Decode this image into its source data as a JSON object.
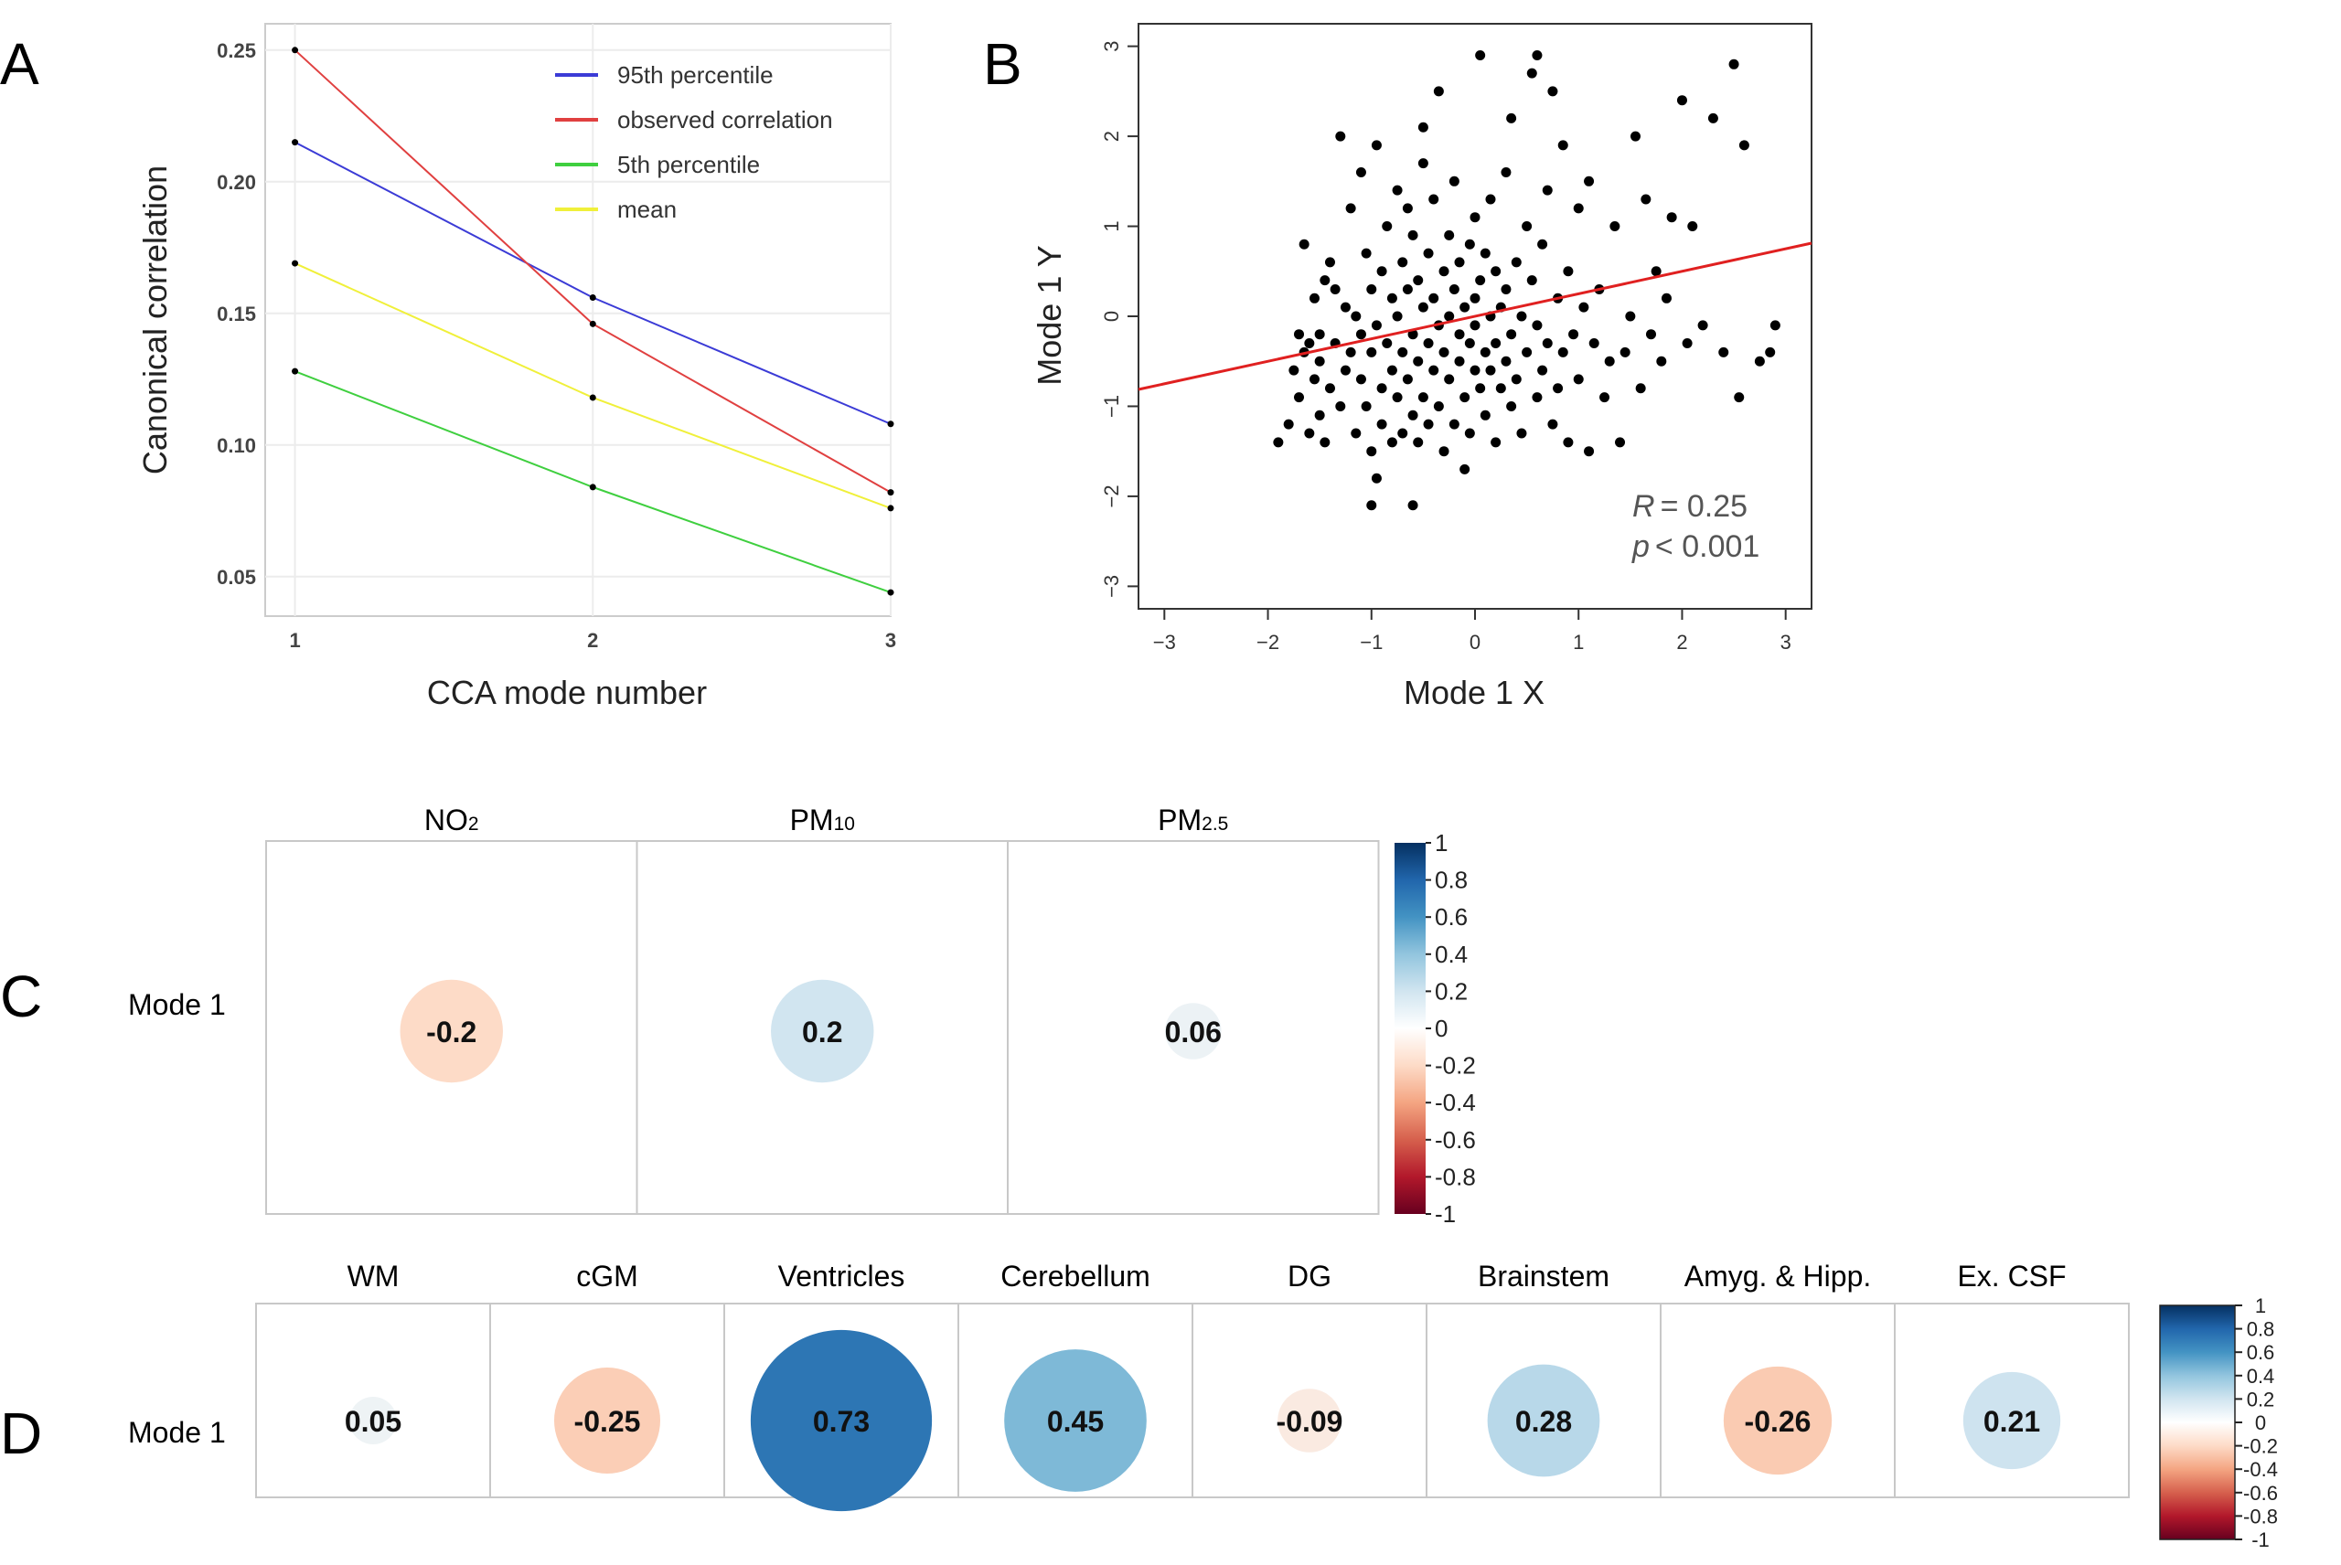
{
  "panels": {
    "a": {
      "letter": "A",
      "chart_data": {
        "type": "line",
        "title": "",
        "xlabel": "CCA mode number",
        "ylabel": "Canonical correlation",
        "x": [
          1,
          2,
          3
        ],
        "xticks": [
          "1",
          "2",
          "3"
        ],
        "xlim": [
          0.9,
          3.0
        ],
        "ylim": [
          0.035,
          0.26
        ],
        "yticks": [
          0.05,
          0.1,
          0.15,
          0.2,
          0.25
        ],
        "ytick_labels": [
          "0.05",
          "0.10",
          "0.15",
          "0.20",
          "0.25"
        ],
        "grid": true,
        "legend_position": "top-right",
        "series": [
          {
            "name": "95th percentile",
            "color": "#3b3bd6",
            "values": [
              0.215,
              0.156,
              0.108
            ]
          },
          {
            "name": "observed correlation",
            "color": "#e04040",
            "values": [
              0.25,
              0.146,
              0.082
            ]
          },
          {
            "name": "5th percentile",
            "color": "#3fcf3f",
            "values": [
              0.128,
              0.084,
              0.044
            ]
          },
          {
            "name": "mean",
            "color": "#f0f03a",
            "values": [
              0.169,
              0.118,
              0.076
            ]
          }
        ]
      }
    },
    "b": {
      "letter": "B",
      "chart_data": {
        "type": "scatter",
        "xlabel": "Mode 1 X",
        "ylabel": "Mode 1 Y",
        "xlim": [
          -3.25,
          3.25
        ],
        "ylim": [
          -3.25,
          3.25
        ],
        "xticks": [
          -3,
          -2,
          -1,
          0,
          1,
          2,
          3
        ],
        "xtick_labels": [
          "−3",
          "−2",
          "−1",
          "0",
          "1",
          "2",
          "3"
        ],
        "yticks": [
          -3,
          -2,
          -1,
          0,
          1,
          2,
          3
        ],
        "ytick_labels": [
          "−3",
          "−2",
          "−1",
          "0",
          "1",
          "2",
          "3"
        ],
        "fit_line": {
          "slope": 0.25,
          "intercept": 0.0,
          "color": "#e02020"
        },
        "annotation": {
          "r_label": "R",
          "r_value": "= 0.25",
          "p_label": "p",
          "p_value": "< 0.001"
        },
        "points": [
          [
            -1.9,
            -1.4
          ],
          [
            -1.8,
            -1.2
          ],
          [
            -1.75,
            -0.6
          ],
          [
            -1.7,
            -0.9
          ],
          [
            -1.7,
            -0.2
          ],
          [
            -1.65,
            -0.4
          ],
          [
            -1.65,
            0.8
          ],
          [
            -1.6,
            -1.3
          ],
          [
            -1.6,
            -0.3
          ],
          [
            -1.55,
            -0.7
          ],
          [
            -1.55,
            0.2
          ],
          [
            -1.5,
            -1.1
          ],
          [
            -1.5,
            -0.5
          ],
          [
            -1.5,
            -0.2
          ],
          [
            -1.45,
            0.4
          ],
          [
            -1.45,
            -1.4
          ],
          [
            -1.4,
            -0.8
          ],
          [
            -1.4,
            0.6
          ],
          [
            -1.35,
            -0.3
          ],
          [
            -1.35,
            0.3
          ],
          [
            -1.3,
            -1.0
          ],
          [
            -1.3,
            2.0
          ],
          [
            -1.25,
            -0.6
          ],
          [
            -1.25,
            0.1
          ],
          [
            -1.2,
            -0.4
          ],
          [
            -1.2,
            1.2
          ],
          [
            -1.15,
            -1.3
          ],
          [
            -1.15,
            0.0
          ],
          [
            -1.1,
            -0.7
          ],
          [
            -1.1,
            1.6
          ],
          [
            -1.1,
            -0.2
          ],
          [
            -1.05,
            0.7
          ],
          [
            -1.05,
            -1.0
          ],
          [
            -1.0,
            -1.5
          ],
          [
            -1.0,
            -0.4
          ],
          [
            -1.0,
            0.3
          ],
          [
            -1.0,
            -2.1
          ],
          [
            -0.95,
            -1.8
          ],
          [
            -0.95,
            -0.1
          ],
          [
            -0.95,
            1.9
          ],
          [
            -0.9,
            -0.8
          ],
          [
            -0.9,
            0.5
          ],
          [
            -0.9,
            -1.2
          ],
          [
            -0.85,
            -0.3
          ],
          [
            -0.85,
            1.0
          ],
          [
            -0.8,
            -0.6
          ],
          [
            -0.8,
            0.2
          ],
          [
            -0.8,
            -1.4
          ],
          [
            -0.75,
            1.4
          ],
          [
            -0.75,
            -0.9
          ],
          [
            -0.75,
            0.0
          ],
          [
            -0.7,
            -0.4
          ],
          [
            -0.7,
            0.6
          ],
          [
            -0.7,
            -1.3
          ],
          [
            -0.65,
            1.2
          ],
          [
            -0.65,
            -0.7
          ],
          [
            -0.65,
            0.3
          ],
          [
            -0.6,
            -1.1
          ],
          [
            -0.6,
            -0.2
          ],
          [
            -0.6,
            0.9
          ],
          [
            -0.6,
            -2.1
          ],
          [
            -0.55,
            -1.4
          ],
          [
            -0.55,
            0.4
          ],
          [
            -0.55,
            -0.5
          ],
          [
            -0.5,
            1.7
          ],
          [
            -0.5,
            -0.9
          ],
          [
            -0.5,
            0.1
          ],
          [
            -0.5,
            2.1
          ],
          [
            -0.45,
            -0.3
          ],
          [
            -0.45,
            0.7
          ],
          [
            -0.45,
            -1.2
          ],
          [
            -0.4,
            -0.6
          ],
          [
            -0.4,
            0.2
          ],
          [
            -0.4,
            1.3
          ],
          [
            -0.35,
            -1.0
          ],
          [
            -0.35,
            -0.1
          ],
          [
            -0.35,
            2.5
          ],
          [
            -0.3,
            0.5
          ],
          [
            -0.3,
            -0.4
          ],
          [
            -0.3,
            -1.5
          ],
          [
            -0.25,
            0.9
          ],
          [
            -0.25,
            -0.7
          ],
          [
            -0.25,
            0.0
          ],
          [
            -0.2,
            -1.2
          ],
          [
            -0.2,
            0.3
          ],
          [
            -0.2,
            1.5
          ],
          [
            -0.15,
            -0.5
          ],
          [
            -0.15,
            -0.2
          ],
          [
            -0.15,
            0.6
          ],
          [
            -0.1,
            -0.9
          ],
          [
            -0.1,
            0.1
          ],
          [
            -0.1,
            -1.7
          ],
          [
            -0.05,
            -0.3
          ],
          [
            -0.05,
            0.8
          ],
          [
            -0.05,
            -1.3
          ],
          [
            0.0,
            -0.6
          ],
          [
            0.0,
            0.2
          ],
          [
            0.0,
            1.1
          ],
          [
            0.0,
            -0.1
          ],
          [
            0.05,
            -0.8
          ],
          [
            0.05,
            0.4
          ],
          [
            0.05,
            2.9
          ],
          [
            0.1,
            -0.4
          ],
          [
            0.1,
            -1.1
          ],
          [
            0.1,
            0.7
          ],
          [
            0.15,
            0.0
          ],
          [
            0.15,
            -0.6
          ],
          [
            0.15,
            1.3
          ],
          [
            0.2,
            -0.3
          ],
          [
            0.2,
            0.5
          ],
          [
            0.2,
            -1.4
          ],
          [
            0.25,
            -0.8
          ],
          [
            0.25,
            0.1
          ],
          [
            0.3,
            1.6
          ],
          [
            0.3,
            -0.5
          ],
          [
            0.3,
            0.3
          ],
          [
            0.35,
            -1.0
          ],
          [
            0.35,
            -0.2
          ],
          [
            0.35,
            2.2
          ],
          [
            0.4,
            0.6
          ],
          [
            0.4,
            -0.7
          ],
          [
            0.45,
            0.0
          ],
          [
            0.45,
            -1.3
          ],
          [
            0.5,
            1.0
          ],
          [
            0.5,
            -0.4
          ],
          [
            0.55,
            0.4
          ],
          [
            0.55,
            2.7
          ],
          [
            0.6,
            -0.9
          ],
          [
            0.6,
            -0.1
          ],
          [
            0.6,
            2.9
          ],
          [
            0.65,
            0.8
          ],
          [
            0.65,
            -0.6
          ],
          [
            0.7,
            1.4
          ],
          [
            0.7,
            -0.3
          ],
          [
            0.75,
            2.5
          ],
          [
            0.75,
            -1.2
          ],
          [
            0.8,
            0.2
          ],
          [
            0.8,
            -0.8
          ],
          [
            0.85,
            1.9
          ],
          [
            0.85,
            -0.4
          ],
          [
            0.9,
            0.5
          ],
          [
            0.9,
            -1.4
          ],
          [
            0.95,
            -0.2
          ],
          [
            1.0,
            1.2
          ],
          [
            1.0,
            -0.7
          ],
          [
            1.05,
            0.1
          ],
          [
            1.1,
            -1.5
          ],
          [
            1.1,
            1.5
          ],
          [
            1.15,
            -0.3
          ],
          [
            1.2,
            0.3
          ],
          [
            1.25,
            -0.9
          ],
          [
            1.3,
            -0.5
          ],
          [
            1.35,
            1.0
          ],
          [
            1.4,
            -1.4
          ],
          [
            1.45,
            -0.4
          ],
          [
            1.5,
            0.0
          ],
          [
            1.55,
            2.0
          ],
          [
            1.6,
            -0.8
          ],
          [
            1.65,
            1.3
          ],
          [
            1.7,
            -0.2
          ],
          [
            1.75,
            0.5
          ],
          [
            1.8,
            -0.5
          ],
          [
            1.85,
            0.2
          ],
          [
            1.9,
            1.1
          ],
          [
            2.0,
            2.4
          ],
          [
            2.05,
            -0.3
          ],
          [
            2.1,
            1.0
          ],
          [
            2.2,
            -0.1
          ],
          [
            2.3,
            2.2
          ],
          [
            2.4,
            -0.4
          ],
          [
            2.5,
            2.8
          ],
          [
            2.55,
            -0.9
          ],
          [
            2.6,
            1.9
          ],
          [
            2.75,
            -0.5
          ],
          [
            2.85,
            -0.4
          ],
          [
            2.9,
            -0.1
          ]
        ]
      }
    },
    "c": {
      "letter": "C",
      "row_label": "Mode 1",
      "chart_data": {
        "type": "heatmap",
        "columns": [
          "NO",
          "PM",
          "PM"
        ],
        "column_subscripts": [
          "2",
          "10",
          "2.5"
        ],
        "rows": [
          "Mode 1"
        ],
        "values": [
          [
            -0.2,
            0.2,
            0.06
          ]
        ],
        "colorbar_ticks": [
          "1",
          "0.8",
          "0.6",
          "0.4",
          "0.2",
          "0",
          "-0.2",
          "-0.4",
          "-0.6",
          "-0.8",
          "-1"
        ],
        "colorbar_range": [
          -1,
          1
        ],
        "value_labels": [
          "-0.2",
          "0.2",
          "0.06"
        ]
      }
    },
    "d": {
      "letter": "D",
      "row_label": "Mode 1",
      "chart_data": {
        "type": "heatmap",
        "columns": [
          "WM",
          "cGM",
          "Ventricles",
          "Cerebellum",
          "DG",
          "Brainstem",
          "Amyg. & Hipp.",
          "Ex. CSF"
        ],
        "rows": [
          "Mode 1"
        ],
        "values": [
          [
            0.05,
            -0.25,
            0.73,
            0.45,
            -0.09,
            0.28,
            -0.26,
            0.21
          ]
        ],
        "value_labels": [
          "0.05",
          "-0.25",
          "0.73",
          "0.45",
          "-0.09",
          "0.28",
          "-0.26",
          "0.21"
        ],
        "colorbar_ticks": [
          "1",
          "0.8",
          "0.6",
          "0.4",
          "0.2",
          "0",
          "-0.2",
          "-0.4",
          "-0.6",
          "-0.8",
          "-1"
        ],
        "colorbar_range": [
          -1,
          1
        ]
      }
    }
  }
}
